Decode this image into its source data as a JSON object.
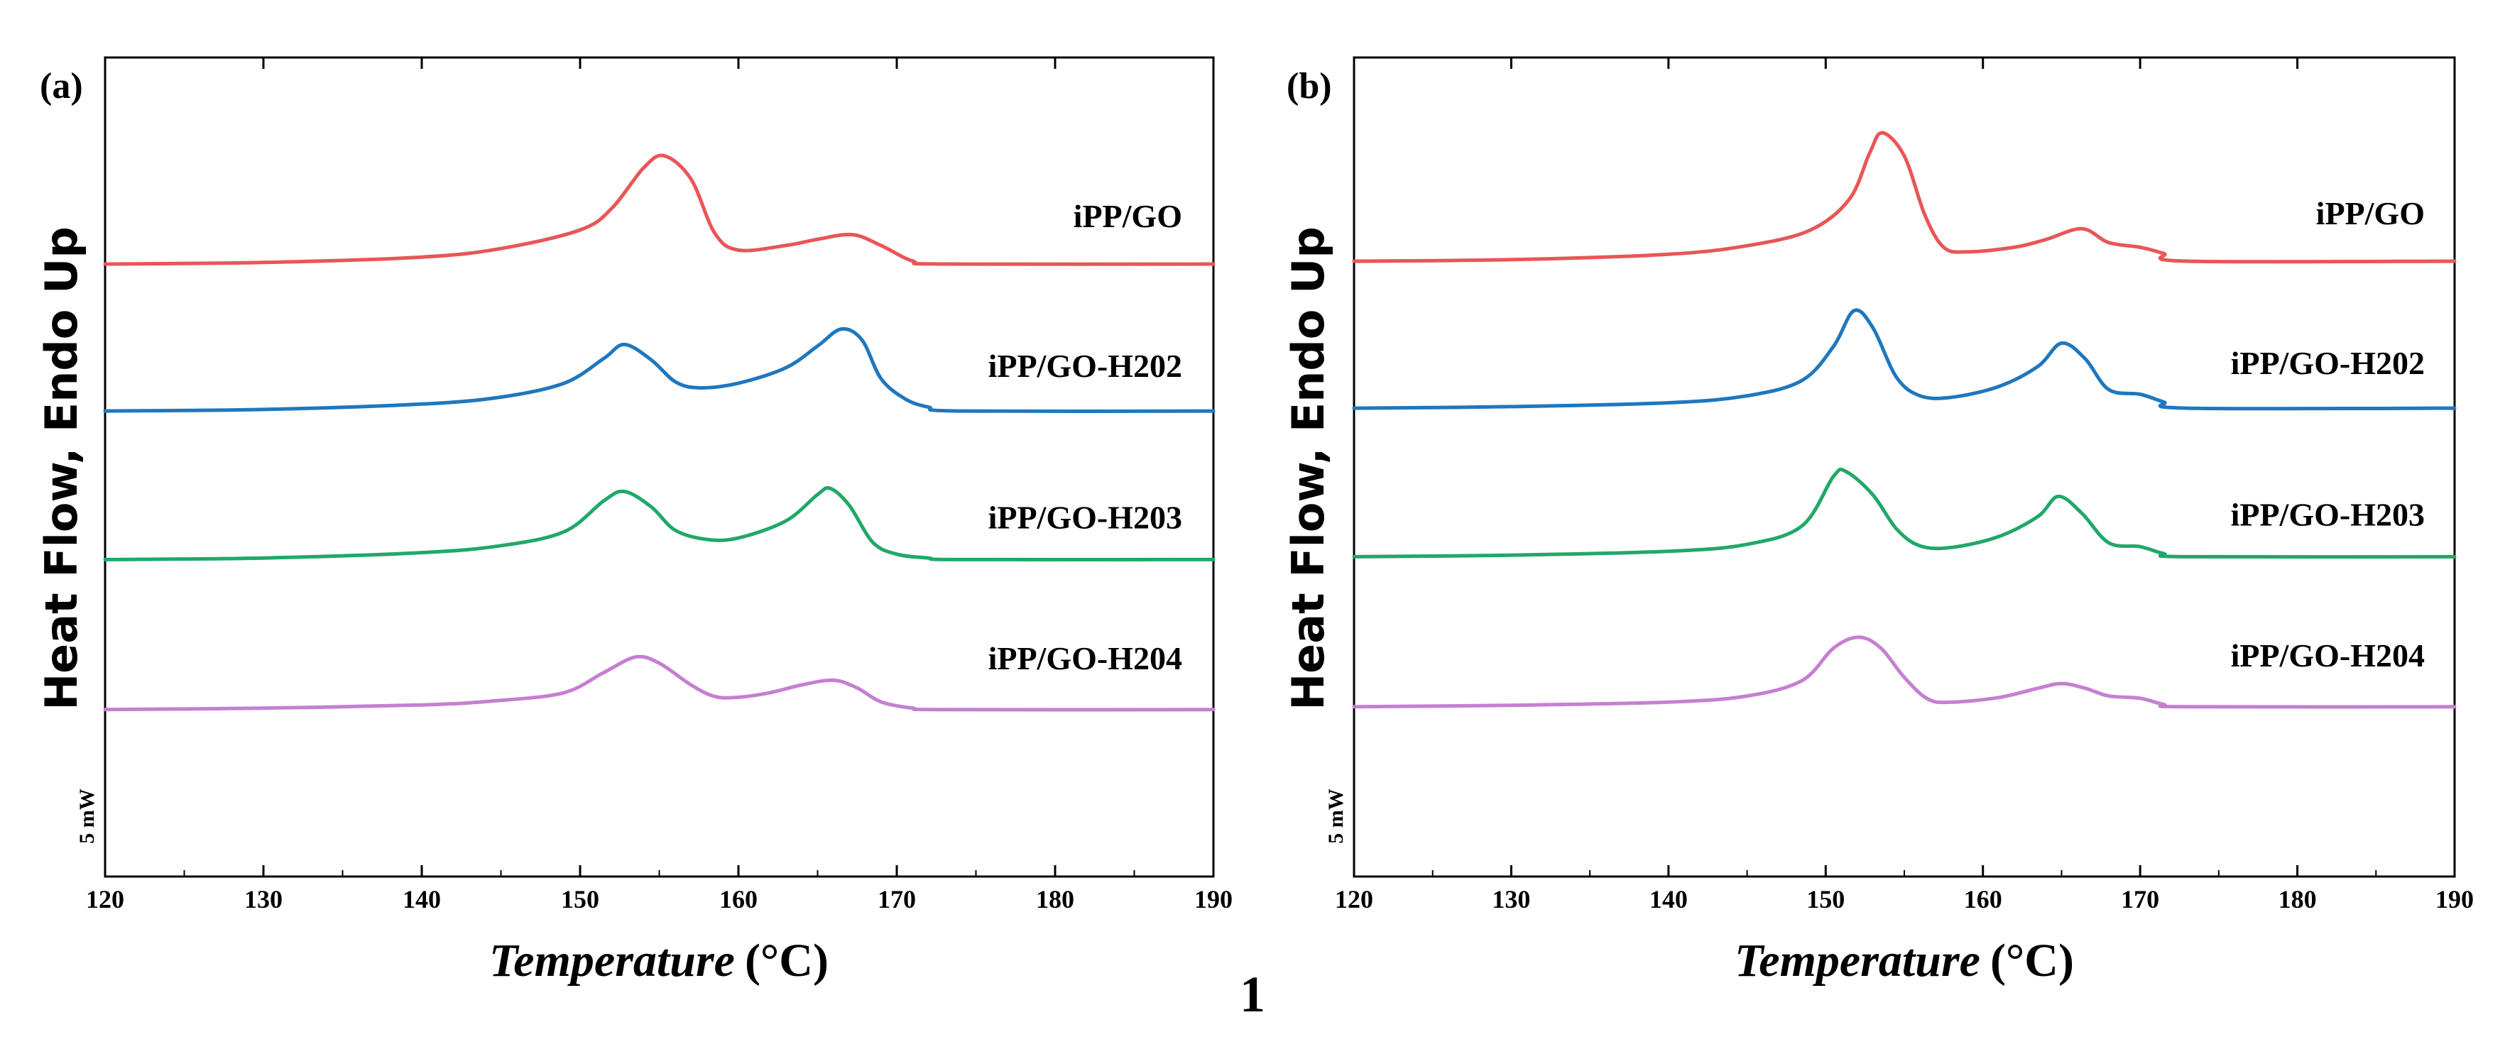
{
  "figure_number": "1",
  "chart_data": [
    {
      "type": "line",
      "panel_label": "(a)",
      "xlabel_italic": "Temperature",
      "xlabel_unit": "(°C)",
      "ylabel": "Heat Flow, Endo Up",
      "xlim": [
        120,
        190
      ],
      "xticks": [
        120,
        130,
        140,
        150,
        160,
        170,
        180,
        190
      ],
      "scale_bar_label": "5 mW",
      "series": [
        {
          "name": "iPP/GO",
          "color": "#e85656",
          "baseline": 0,
          "points": [
            [
              120,
              0
            ],
            [
              130,
              0.1
            ],
            [
              140,
              0.45
            ],
            [
              145,
              1.0
            ],
            [
              150,
              2.2
            ],
            [
              152,
              3.6
            ],
            [
              154,
              6.2
            ],
            [
              155.3,
              7.0
            ],
            [
              157,
              5.5
            ],
            [
              158.5,
              2.0
            ],
            [
              160,
              0.9
            ],
            [
              163,
              1.2
            ],
            [
              165,
              1.6
            ],
            [
              167.2,
              1.9
            ],
            [
              169,
              1.2
            ],
            [
              171,
              0.2
            ],
            [
              173,
              0
            ],
            [
              190,
              0
            ]
          ]
        },
        {
          "name": "iPP/GO-H202",
          "color": "#1f77bd",
          "baseline": -9.5,
          "points": [
            [
              120,
              0
            ],
            [
              130,
              0.1
            ],
            [
              140,
              0.45
            ],
            [
              145,
              0.9
            ],
            [
              149,
              1.8
            ],
            [
              151.5,
              3.4
            ],
            [
              152.8,
              4.3
            ],
            [
              154.5,
              3.3
            ],
            [
              156,
              1.9
            ],
            [
              157.5,
              1.5
            ],
            [
              160,
              1.8
            ],
            [
              163,
              2.8
            ],
            [
              165,
              4.2
            ],
            [
              166.5,
              5.3
            ],
            [
              167.8,
              4.6
            ],
            [
              169,
              2.1
            ],
            [
              170.5,
              0.8
            ],
            [
              172,
              0.25
            ],
            [
              174,
              0
            ],
            [
              190,
              0
            ]
          ]
        },
        {
          "name": "iPP/GO-H203",
          "color": "#21a868",
          "baseline": -19.1,
          "points": [
            [
              120,
              0
            ],
            [
              130,
              0.1
            ],
            [
              140,
              0.45
            ],
            [
              145,
              0.9
            ],
            [
              149,
              1.8
            ],
            [
              151.5,
              3.8
            ],
            [
              152.8,
              4.4
            ],
            [
              154.5,
              3.4
            ],
            [
              156,
              1.9
            ],
            [
              158,
              1.3
            ],
            [
              160,
              1.4
            ],
            [
              163,
              2.5
            ],
            [
              165,
              4.2
            ],
            [
              165.8,
              4.6
            ],
            [
              167,
              3.5
            ],
            [
              168.5,
              1.1
            ],
            [
              170,
              0.35
            ],
            [
              172,
              0.1
            ],
            [
              174,
              0
            ],
            [
              190,
              0
            ]
          ]
        },
        {
          "name": "iPP/GO-H204",
          "color": "#c57fd1",
          "baseline": -28.8,
          "points": [
            [
              120,
              0
            ],
            [
              130,
              0.1
            ],
            [
              140,
              0.3
            ],
            [
              145,
              0.6
            ],
            [
              149,
              1.1
            ],
            [
              151.5,
              2.4
            ],
            [
              153.5,
              3.4
            ],
            [
              155,
              3.0
            ],
            [
              157,
              1.6
            ],
            [
              158.5,
              0.85
            ],
            [
              160,
              0.8
            ],
            [
              162,
              1.1
            ],
            [
              164,
              1.6
            ],
            [
              166,
              1.9
            ],
            [
              167.5,
              1.4
            ],
            [
              169,
              0.5
            ],
            [
              171,
              0.1
            ],
            [
              173,
              0
            ],
            [
              190,
              0
            ]
          ]
        }
      ]
    },
    {
      "type": "line",
      "panel_label": "(b)",
      "xlabel_italic": "Temperature",
      "xlabel_unit": "(°C)",
      "ylabel": "Heat Flow, Endo Up",
      "xlim": [
        120,
        190
      ],
      "xticks": [
        120,
        130,
        140,
        150,
        160,
        170,
        180,
        190
      ],
      "scale_bar_label": "5 mW",
      "series": [
        {
          "name": "iPP/GO",
          "color": "#e85656",
          "baseline": 0,
          "points": [
            [
              120,
              0
            ],
            [
              130,
              0.1
            ],
            [
              140,
              0.45
            ],
            [
              145,
              1.0
            ],
            [
              149,
              2.0
            ],
            [
              151.5,
              4.0
            ],
            [
              152.8,
              7.0
            ],
            [
              153.6,
              8.3
            ],
            [
              155,
              6.8
            ],
            [
              156.3,
              3.0
            ],
            [
              157.5,
              0.9
            ],
            [
              159,
              0.6
            ],
            [
              162,
              0.9
            ],
            [
              164,
              1.4
            ],
            [
              166.3,
              2.1
            ],
            [
              168,
              1.2
            ],
            [
              170,
              0.9
            ],
            [
              171.5,
              0.5
            ],
            [
              173,
              0
            ],
            [
              190,
              0
            ]
          ]
        },
        {
          "name": "iPP/GO-H202",
          "color": "#1f77bd",
          "baseline": -9.5,
          "points": [
            [
              120,
              0
            ],
            [
              130,
              0.1
            ],
            [
              140,
              0.35
            ],
            [
              145,
              0.8
            ],
            [
              148.5,
              1.8
            ],
            [
              150.5,
              4.0
            ],
            [
              151.8,
              6.3
            ],
            [
              153,
              5.2
            ],
            [
              154.5,
              2.0
            ],
            [
              156,
              0.8
            ],
            [
              158,
              0.7
            ],
            [
              161,
              1.4
            ],
            [
              163.5,
              2.7
            ],
            [
              165,
              4.2
            ],
            [
              166.5,
              3.2
            ],
            [
              168,
              1.2
            ],
            [
              170,
              0.9
            ],
            [
              171.5,
              0.4
            ],
            [
              173,
              0
            ],
            [
              190,
              0
            ]
          ]
        },
        {
          "name": "iPP/GO-H203",
          "color": "#21a868",
          "baseline": -19.1,
          "points": [
            [
              120,
              0
            ],
            [
              130,
              0.1
            ],
            [
              140,
              0.35
            ],
            [
              145,
              0.8
            ],
            [
              148.5,
              2.0
            ],
            [
              150.5,
              5.2
            ],
            [
              151.3,
              5.5
            ],
            [
              153,
              4.0
            ],
            [
              154.5,
              1.8
            ],
            [
              156,
              0.7
            ],
            [
              158,
              0.6
            ],
            [
              161,
              1.3
            ],
            [
              163.5,
              2.6
            ],
            [
              164.8,
              3.9
            ],
            [
              166.3,
              2.8
            ],
            [
              168,
              0.9
            ],
            [
              170,
              0.65
            ],
            [
              171.5,
              0.2
            ],
            [
              173,
              0
            ],
            [
              190,
              0
            ]
          ]
        },
        {
          "name": "iPP/GO-H204",
          "color": "#c57fd1",
          "baseline": -28.8,
          "points": [
            [
              120,
              0
            ],
            [
              130,
              0.1
            ],
            [
              140,
              0.3
            ],
            [
              145,
              0.7
            ],
            [
              148.5,
              1.7
            ],
            [
              150.5,
              3.8
            ],
            [
              152.1,
              4.5
            ],
            [
              153.5,
              3.8
            ],
            [
              155,
              1.9
            ],
            [
              156.5,
              0.5
            ],
            [
              158,
              0.3
            ],
            [
              161,
              0.6
            ],
            [
              163.5,
              1.2
            ],
            [
              165,
              1.5
            ],
            [
              166.5,
              1.2
            ],
            [
              168,
              0.7
            ],
            [
              170,
              0.55
            ],
            [
              171.5,
              0.15
            ],
            [
              173,
              0
            ],
            [
              190,
              0
            ]
          ]
        }
      ]
    }
  ]
}
